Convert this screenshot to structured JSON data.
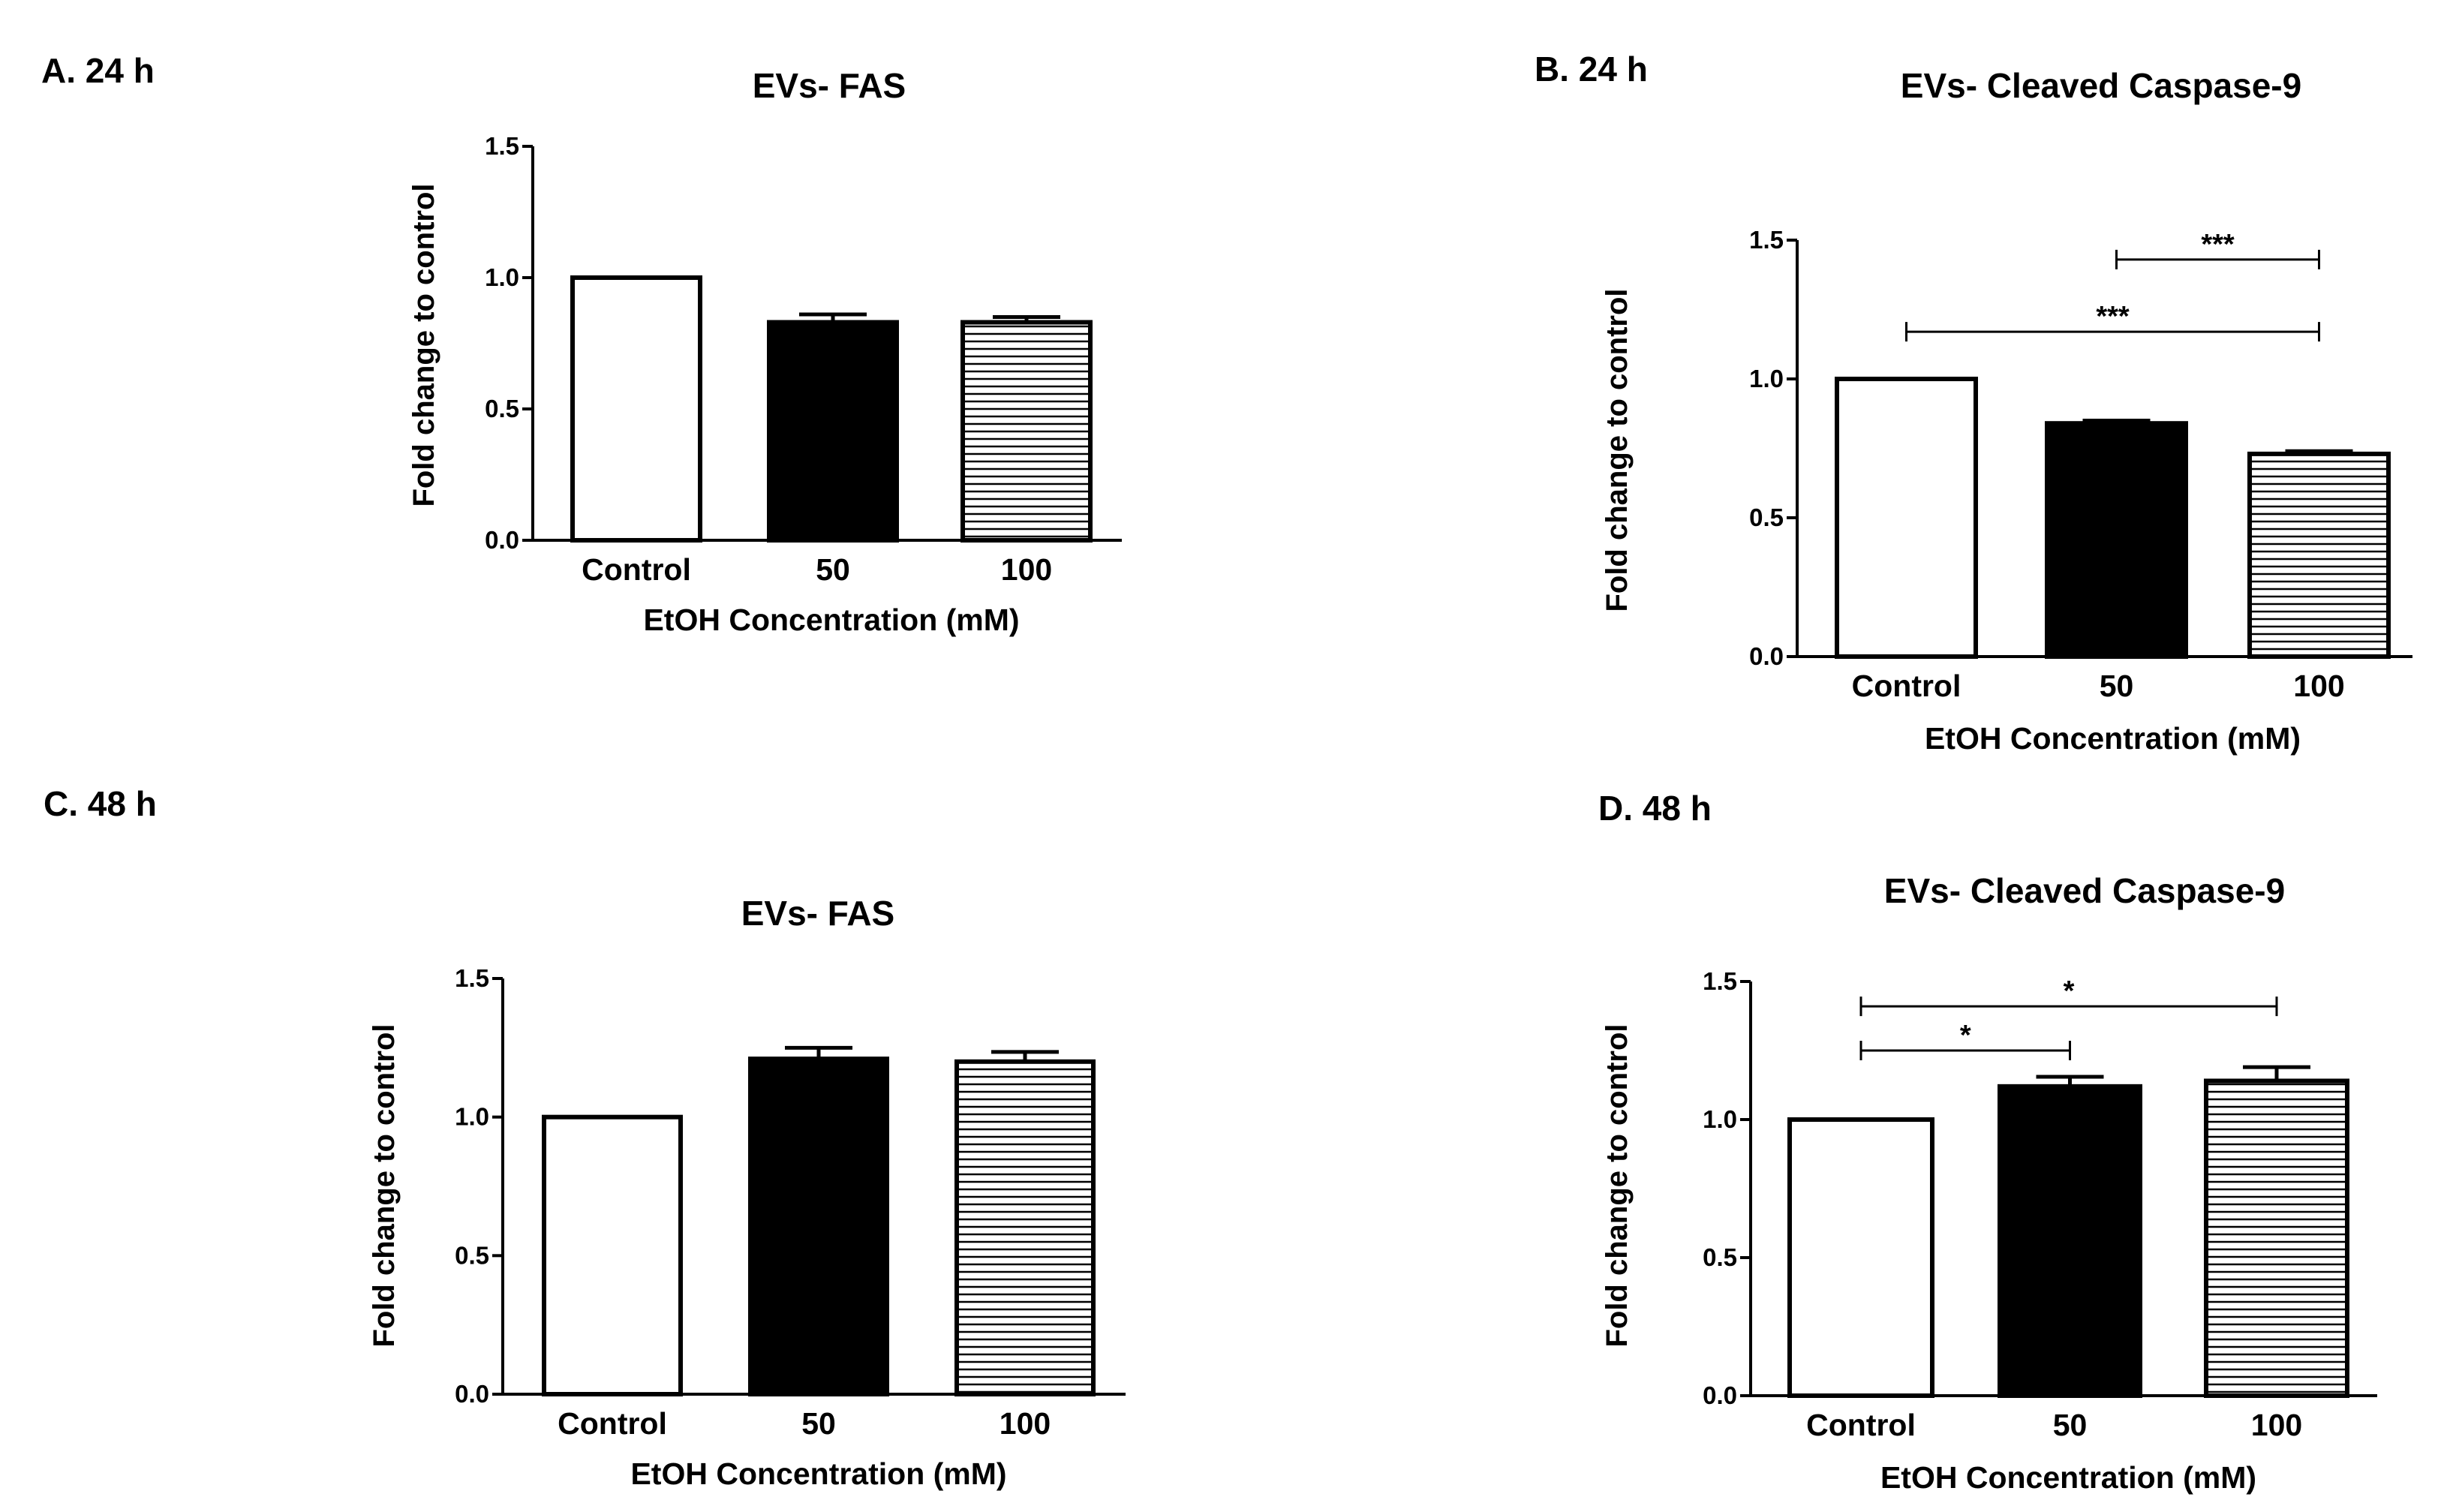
{
  "chart_data": [
    {
      "panel": "A. 24 h",
      "type": "bar",
      "title": "EVs- FAS",
      "xlabel": "EtOH Concentration (mM)",
      "ylabel": "Fold change to control",
      "categories": [
        "Control",
        "50",
        "100"
      ],
      "values": [
        1.0,
        0.83,
        0.83
      ],
      "errors": [
        0.0,
        0.03,
        0.02
      ],
      "fills": [
        "white",
        "black",
        "hlines"
      ],
      "ylim": [
        0,
        1.5
      ],
      "yticks": [
        "0.0",
        "0.5",
        "1.0",
        "1.5"
      ],
      "significance": []
    },
    {
      "panel": "B. 24 h",
      "type": "bar",
      "title": "EVs- Cleaved Caspase-9",
      "xlabel": "EtOH Concentration (mM)",
      "ylabel": "Fold change to control",
      "categories": [
        "Control",
        "50",
        "100"
      ],
      "values": [
        1.0,
        0.84,
        0.73
      ],
      "errors": [
        0.0,
        0.01,
        0.01
      ],
      "fills": [
        "white",
        "black",
        "hlines"
      ],
      "ylim": [
        0,
        1.5
      ],
      "yticks": [
        "0.0",
        "0.5",
        "1.0",
        "1.5"
      ],
      "significance": [
        {
          "from": 1,
          "to": 2,
          "level": 1.43,
          "label": "***"
        },
        {
          "from": 0,
          "to": 2,
          "level": 1.17,
          "label": "***"
        }
      ]
    },
    {
      "panel": "C. 48 h",
      "type": "bar",
      "title": "EVs- FAS",
      "xlabel": "EtOH Concentration (mM)",
      "ylabel": "Fold change to control",
      "categories": [
        "Control",
        "50",
        "100"
      ],
      "values": [
        1.0,
        1.21,
        1.2
      ],
      "errors": [
        0.0,
        0.04,
        0.035
      ],
      "fills": [
        "white",
        "black",
        "hlines"
      ],
      "ylim": [
        0,
        1.5
      ],
      "yticks": [
        "0.0",
        "0.5",
        "1.0",
        "1.5"
      ],
      "significance": []
    },
    {
      "panel": "D. 48 h",
      "type": "bar",
      "title": "EVs- Cleaved Caspase-9",
      "xlabel": "EtOH Concentration (mM)",
      "ylabel": "Fold change to control",
      "categories": [
        "Control",
        "50",
        "100"
      ],
      "values": [
        1.0,
        1.12,
        1.14
      ],
      "errors": [
        0.0,
        0.035,
        0.05
      ],
      "fills": [
        "white",
        "black",
        "hlines"
      ],
      "ylim": [
        0,
        1.5
      ],
      "yticks": [
        "0.0",
        "0.5",
        "1.0",
        "1.5"
      ],
      "significance": [
        {
          "from": 0,
          "to": 2,
          "level": 1.41,
          "label": "*"
        },
        {
          "from": 0,
          "to": 1,
          "level": 1.25,
          "label": "*"
        }
      ]
    }
  ]
}
